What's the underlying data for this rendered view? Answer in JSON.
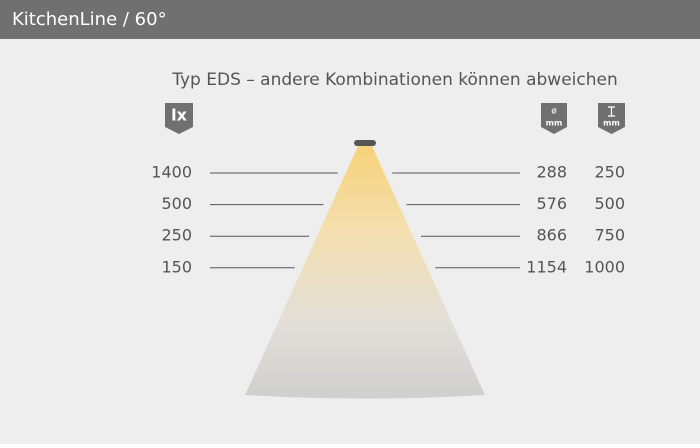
{
  "header": {
    "title": "KitchenLine / 60°"
  },
  "subtitle": "Typ EDS – andere Kombinationen können abweichen",
  "icons": {
    "lux": "lx",
    "diameter": {
      "symbol": "ø",
      "unit": "mm"
    },
    "distance": {
      "unit": "mm"
    }
  },
  "rows": [
    {
      "lux": 1400,
      "diameter": 288,
      "distance": 250
    },
    {
      "lux": 500,
      "diameter": 576,
      "distance": 500
    },
    {
      "lux": 250,
      "diameter": 866,
      "distance": 750
    },
    {
      "lux": 150,
      "diameter": 1154,
      "distance": 1000
    }
  ]
}
